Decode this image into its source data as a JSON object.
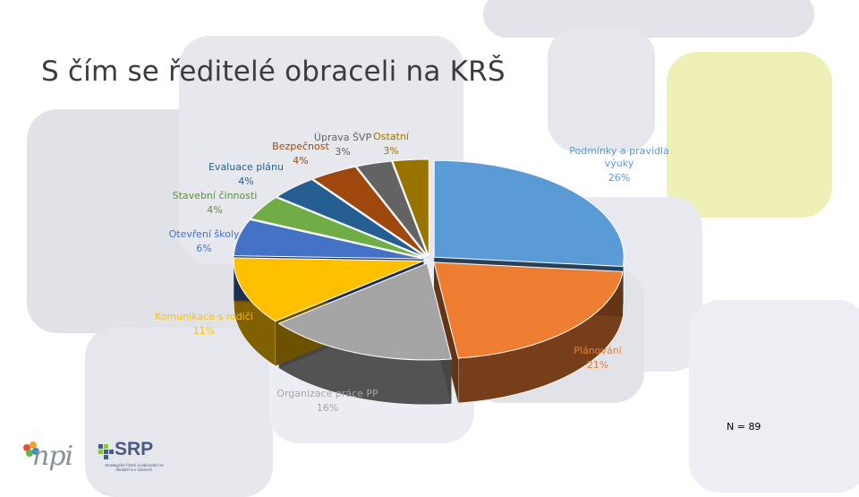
{
  "slide": {
    "title": "S čím se ředitelé obraceli na KRŠ",
    "note": "N = 89"
  },
  "logos": {
    "npi": "npi",
    "srp": "SRP",
    "srp_subtitle": "Strategické řízení a plánování ve školách a v územích"
  },
  "colors": {
    "background_shapes": [
      "#e4e5ea",
      "#eef0b8",
      "#d8dae0"
    ]
  },
  "chart_data": {
    "type": "pie",
    "style": "3d-exploded",
    "title": "",
    "start": "12 o'clock, clockwise",
    "slices": [
      {
        "name": "Podmínky a pravidla výuky",
        "value": 26,
        "label": "26%",
        "color": "#5b9bd5"
      },
      {
        "name": "Plánování",
        "value": 21,
        "label": "21%",
        "color": "#ed7d31"
      },
      {
        "name": "Organizace práce PP",
        "value": 16,
        "label": "16%",
        "color": "#a5a5a5"
      },
      {
        "name": "Komunikace s rodiči",
        "value": 11,
        "label": "11%",
        "color": "#ffc000"
      },
      {
        "name": "Otevření školy",
        "value": 6,
        "label": "6%",
        "color": "#4472c4"
      },
      {
        "name": "Stavební činnosti",
        "value": 4,
        "label": "4%",
        "color": "#70ad47"
      },
      {
        "name": "Evaluace plánu",
        "value": 4,
        "label": "4%",
        "color": "#255e91"
      },
      {
        "name": "Bezpečnost",
        "value": 4,
        "label": "4%",
        "color": "#9e480e"
      },
      {
        "name": "Úprava ŠVP",
        "value": 3,
        "label": "3%",
        "color": "#636363"
      },
      {
        "name": "Ostatní",
        "value": 3,
        "label": "3%",
        "color": "#997300"
      }
    ]
  }
}
